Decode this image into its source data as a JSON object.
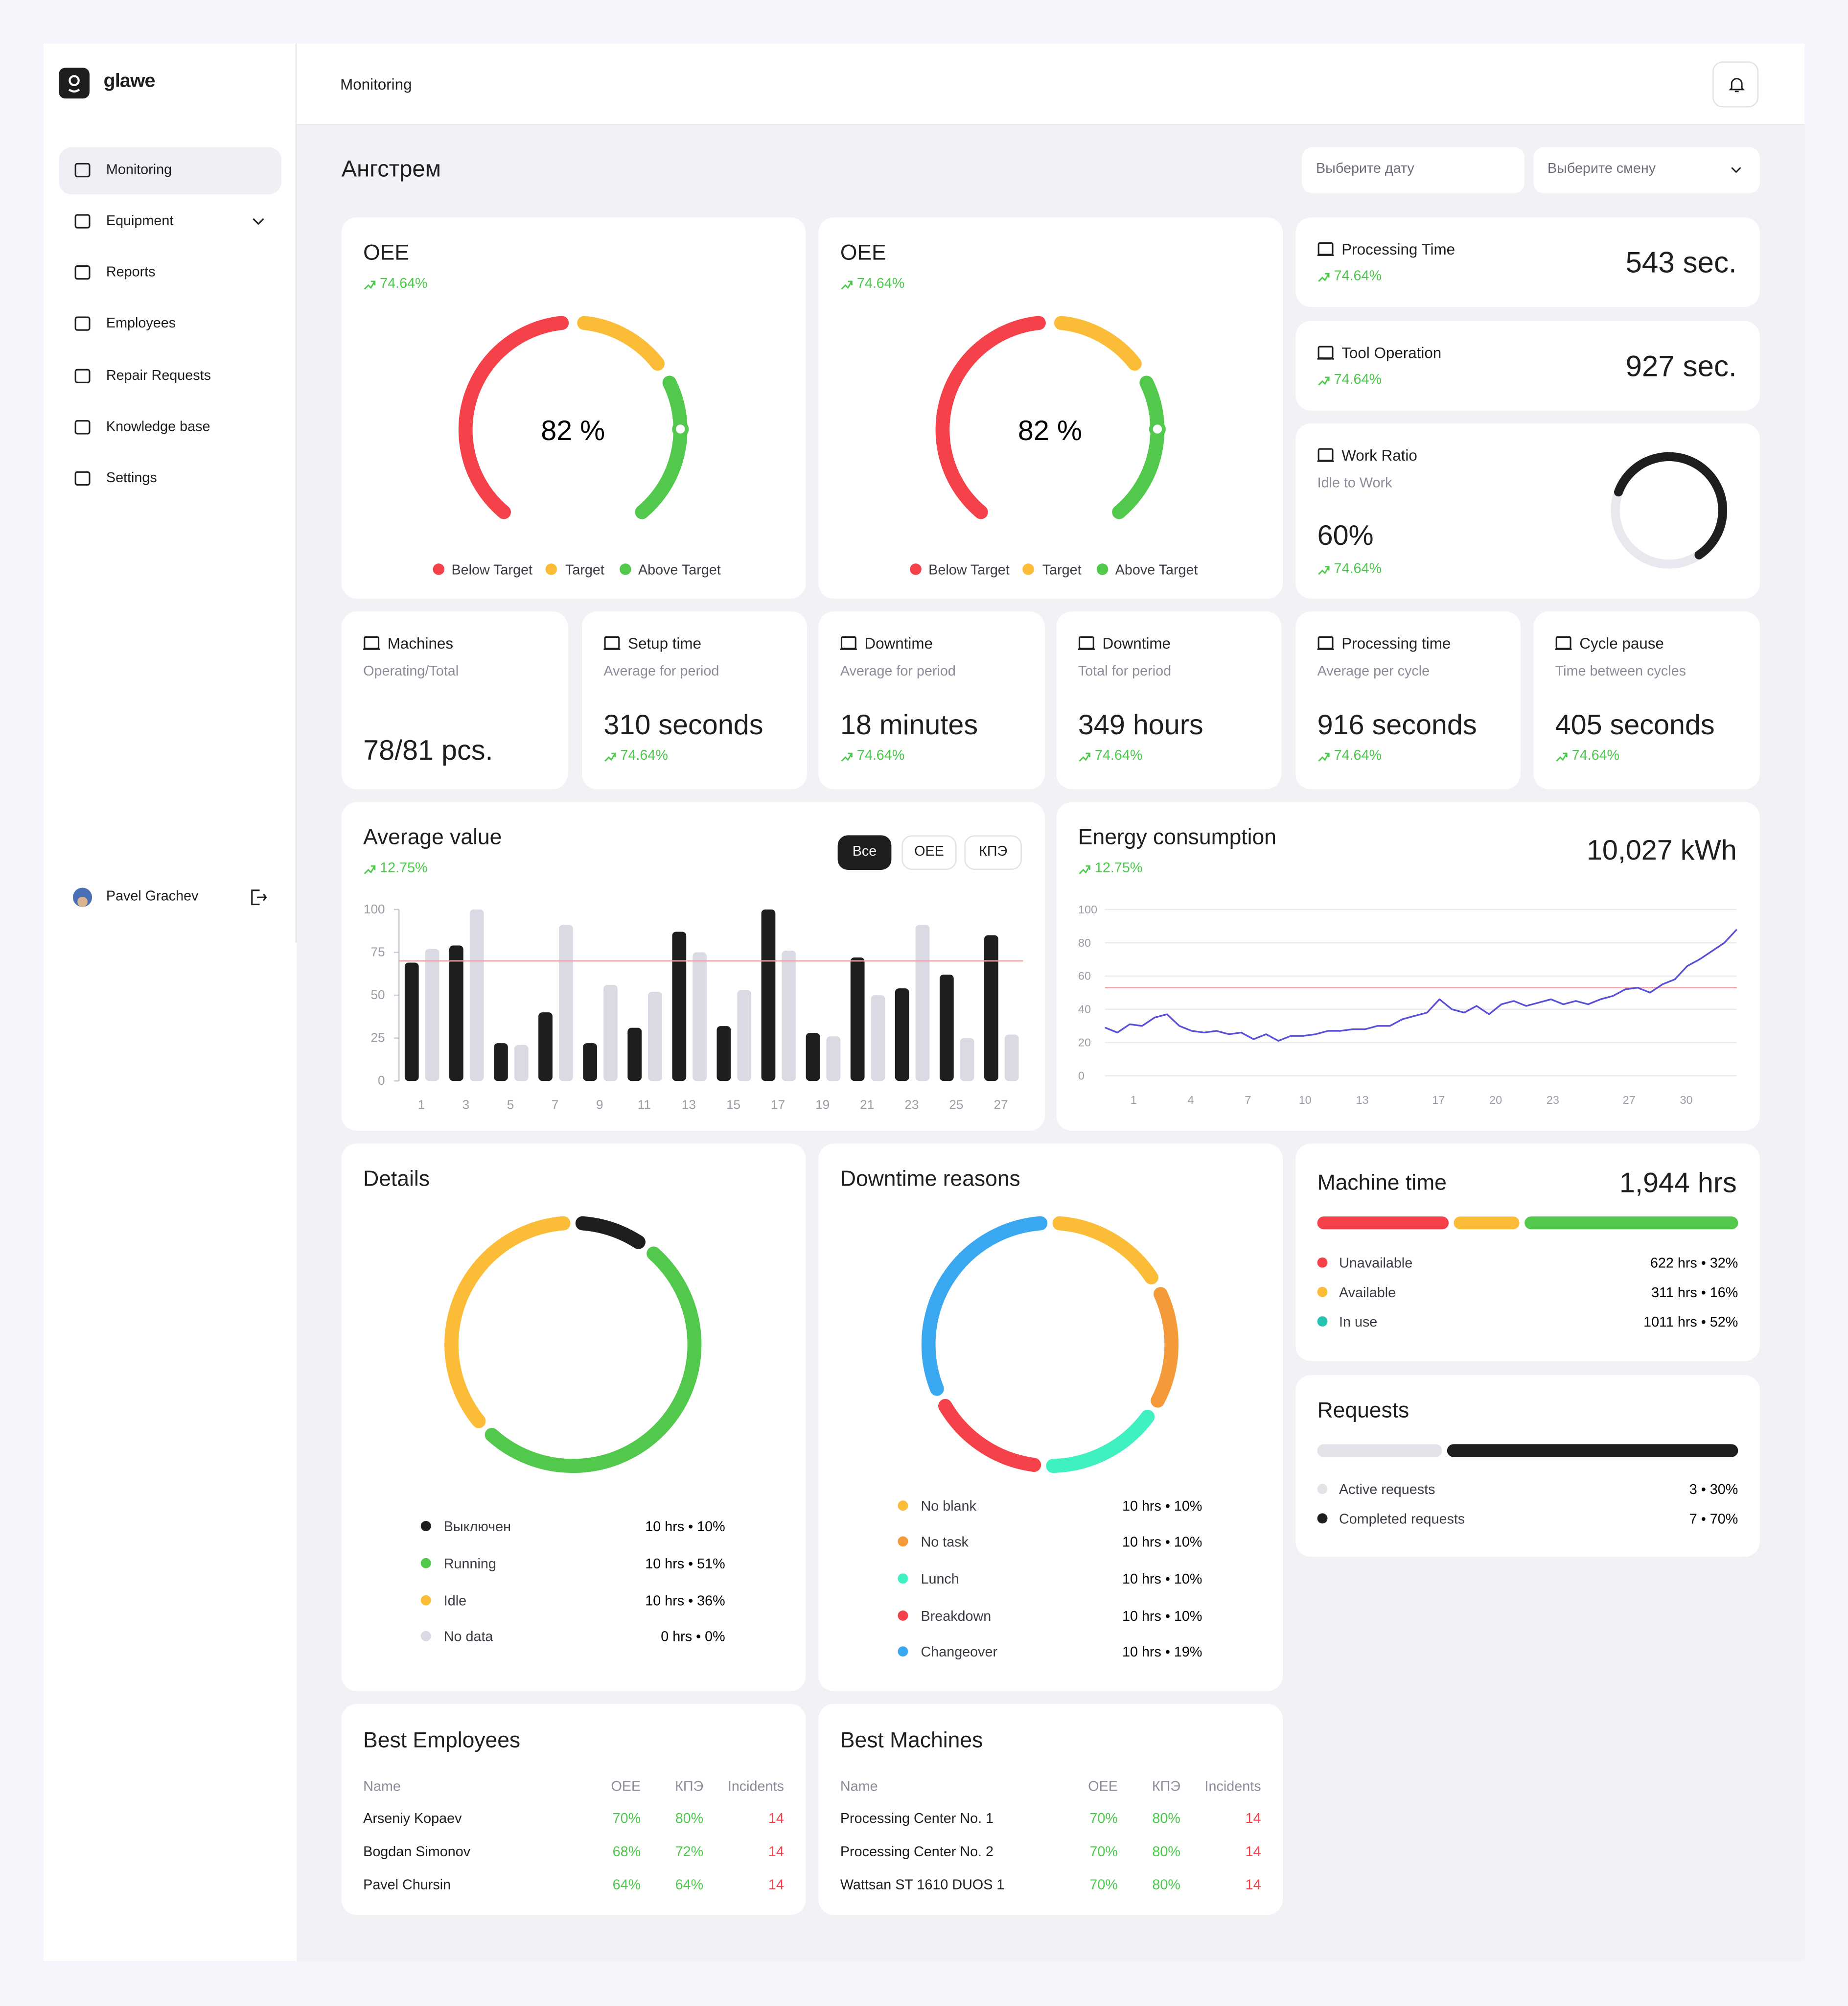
{
  "brand": "glawe",
  "nav": [
    "Monitoring",
    "Equipment",
    "Reports",
    "Employees",
    "Repair Requests",
    "Knowledge base",
    "Settings"
  ],
  "user": "Pavel Grachev",
  "header": {
    "title": "Monitoring"
  },
  "page": {
    "title": "Ангстрем",
    "date_placeholder": "Выберите дату",
    "shift_placeholder": "Выберите смену"
  },
  "oee": [
    {
      "title": "OEE",
      "trend": "74.64%",
      "chart_data": {
        "type": "gauge",
        "value": 82,
        "value_label": "82 %",
        "ylim": [
          0,
          100
        ],
        "legend": [
          "Below Target",
          "Target",
          "Above Target"
        ],
        "colors": [
          "#f5414a",
          "#fbbd38",
          "#52c94c"
        ]
      }
    },
    {
      "title": "OEE",
      "trend": "74.64%",
      "chart_data": {
        "type": "gauge",
        "value": 82,
        "value_label": "82 %",
        "ylim": [
          0,
          100
        ],
        "legend": [
          "Below Target",
          "Target",
          "Above Target"
        ],
        "colors": [
          "#f5414a",
          "#fbbd38",
          "#52c94c"
        ]
      }
    }
  ],
  "time_cards": [
    {
      "title": "Processing Time",
      "trend": "74.64%",
      "value": "543 sec."
    },
    {
      "title": "Tool Operation",
      "trend": "74.64%",
      "value": "927 sec."
    }
  ],
  "work_ratio": {
    "title": "Work Ratio",
    "subtitle": "Idle to Work",
    "trend": "74.64%",
    "chart_data": {
      "type": "ring",
      "value": 60,
      "value_label": "60%",
      "ylim": [
        0,
        100
      ],
      "color": "#1e1e1e"
    }
  },
  "stat_cards": [
    {
      "title": "Machines",
      "subtitle": "Operating/Total",
      "value": "78/81 pcs."
    },
    {
      "title": "Setup time",
      "subtitle": "Average for period",
      "value": "310 seconds",
      "trend": "74.64%"
    },
    {
      "title": "Downtime",
      "subtitle": "Average for period",
      "value": "18 minutes",
      "trend": "74.64%"
    },
    {
      "title": "Downtime",
      "subtitle": "Total for period",
      "value": "349 hours",
      "trend": "74.64%"
    },
    {
      "title": "Processing time",
      "subtitle": "Average per cycle",
      "value": "916 seconds",
      "trend": "74.64%"
    },
    {
      "title": "Cycle pause",
      "subtitle": "Time between cycles",
      "value": "405 seconds",
      "trend": "74.64%"
    }
  ],
  "average": {
    "title": "Average value",
    "trend": "12.75%",
    "filters": [
      "Все",
      "OEE",
      "КПЭ"
    ],
    "chart_data": {
      "type": "bar",
      "categories": [
        "1",
        "3",
        "5",
        "7",
        "9",
        "11",
        "13",
        "15",
        "17",
        "19",
        "21",
        "23",
        "25",
        "27"
      ],
      "series": [
        {
          "color": "#1e1e1e",
          "values": [
            69,
            79,
            22,
            40,
            22,
            31,
            87,
            32,
            100,
            28,
            72,
            54,
            62,
            85
          ]
        },
        {
          "color": "#d9dae4",
          "values": [
            77,
            100,
            21,
            91,
            56,
            52,
            75,
            53,
            76,
            26,
            50,
            91,
            25,
            27
          ]
        }
      ],
      "ylim": [
        0,
        100
      ],
      "yticks": [
        0,
        25,
        50,
        75,
        100
      ],
      "reference_line": 70,
      "reference_color": "#f3a0a6"
    }
  },
  "energy": {
    "title": "Energy consumption",
    "trend": "12.75%",
    "total": "10,027 kWh",
    "chart_data": {
      "type": "line",
      "color": "#5a4fd8",
      "x": [
        -0.5,
        0.15,
        0.8,
        1.45,
        2.1,
        2.75,
        3.4,
        4.05,
        4.7,
        5.35,
        6,
        6.65,
        7.3,
        7.95,
        8.6,
        9.25,
        9.9,
        10.55,
        11.2,
        11.85,
        12.5,
        13.15,
        13.8,
        14.45,
        15.1,
        15.75,
        16.4,
        17.05,
        17.7,
        18.35,
        19,
        19.65,
        20.3,
        20.95,
        21.6,
        22.25,
        22.9,
        23.55,
        24.2,
        24.85,
        25.5,
        26.15,
        26.8,
        27.45,
        28.1,
        28.75,
        29.4,
        30.05,
        30.7,
        31.35,
        32,
        32.65
      ],
      "values": [
        29,
        26,
        31,
        30,
        35,
        37,
        30,
        27,
        26,
        27,
        25,
        26,
        22,
        25,
        21,
        24,
        24,
        25,
        27,
        27,
        28,
        28,
        30,
        30,
        34,
        36,
        38,
        46,
        40,
        38,
        42,
        37,
        43,
        45,
        42,
        44,
        46,
        43,
        45,
        43,
        46,
        48,
        52,
        53,
        50,
        55,
        58,
        66,
        70,
        75,
        80,
        88
      ],
      "xlim": [
        -0.5,
        32.65
      ],
      "xticks": [
        1,
        4,
        7,
        10,
        13,
        17,
        20,
        23,
        27,
        30
      ],
      "ylim": [
        0,
        100
      ],
      "yticks": [
        0,
        20,
        40,
        60,
        80,
        100
      ],
      "grid": true,
      "reference_line": 53,
      "reference_color": "#f3a0a6"
    }
  },
  "details": {
    "title": "Details",
    "chart_data": {
      "type": "donut",
      "categories": [
        "Выключен",
        "Running",
        "Idle",
        "No data"
      ],
      "colors": [
        "#1e1e1e",
        "#52c94c",
        "#fbbd38",
        "#d9dae4"
      ],
      "values": [
        10,
        51,
        36,
        0
      ],
      "value_labels": [
        "10 hrs • 10%",
        "10 hrs • 51%",
        "10 hrs • 36%",
        "0 hrs • 0%"
      ]
    }
  },
  "downtime": {
    "title": "Downtime reasons",
    "chart_data": {
      "type": "donut",
      "categories": [
        "No blank",
        "No task",
        "Lunch",
        "Breakdown",
        "Changeover"
      ],
      "colors": [
        "#fbbd38",
        "#f59a3a",
        "#3ff0c0",
        "#f5414a",
        "#3aa8f0"
      ],
      "values": [
        10,
        10,
        10,
        10,
        19
      ],
      "value_labels": [
        "10 hrs • 10%",
        "10 hrs • 10%",
        "10 hrs • 10%",
        "10 hrs • 10%",
        "10 hrs • 19%"
      ]
    }
  },
  "machine_time": {
    "title": "Machine time",
    "total": "1,944 hrs",
    "chart_data": {
      "type": "stacked_bar",
      "categories": [
        "Unavailable",
        "Available",
        "In use"
      ],
      "colors": [
        "#f5414a",
        "#fbbd38",
        "#52c94c"
      ],
      "legend_colors": [
        "#f5414a",
        "#fbbd38",
        "#27c3b0"
      ],
      "values": [
        32,
        16,
        52
      ],
      "value_labels": [
        "622 hrs • 32%",
        "311 hrs • 16%",
        "1011 hrs • 52%"
      ]
    }
  },
  "requests": {
    "title": "Requests",
    "chart_data": {
      "type": "stacked_bar",
      "categories": [
        "Active requests",
        "Completed requests"
      ],
      "colors": [
        "#e3e4ea",
        "#1e1e1e"
      ],
      "legend_colors": [
        "#e3e4ea",
        "#1e1e1e"
      ],
      "values": [
        30,
        70
      ],
      "value_labels": [
        "3 • 30%",
        "7 • 70%"
      ]
    }
  },
  "best_employees": {
    "title": "Best Employees",
    "columns": [
      "Name",
      "OEE",
      "КПЭ",
      "Incidents"
    ],
    "rows": [
      [
        "Arseniy Kopaev",
        "70%",
        "80%",
        14
      ],
      [
        "Bogdan Simonov",
        "68%",
        "72%",
        14
      ],
      [
        "Pavel Chursin",
        "64%",
        "64%",
        14
      ]
    ]
  },
  "best_machines": {
    "title": "Best Machines",
    "columns": [
      "Name",
      "OEE",
      "КПЭ",
      "Incidents"
    ],
    "rows": [
      [
        "Processing Center No. 1",
        "70%",
        "80%",
        14
      ],
      [
        "Processing Center No. 2",
        "70%",
        "80%",
        14
      ],
      [
        "Wattsan ST 1610 DUOS 1",
        "70%",
        "80%",
        14
      ]
    ]
  }
}
